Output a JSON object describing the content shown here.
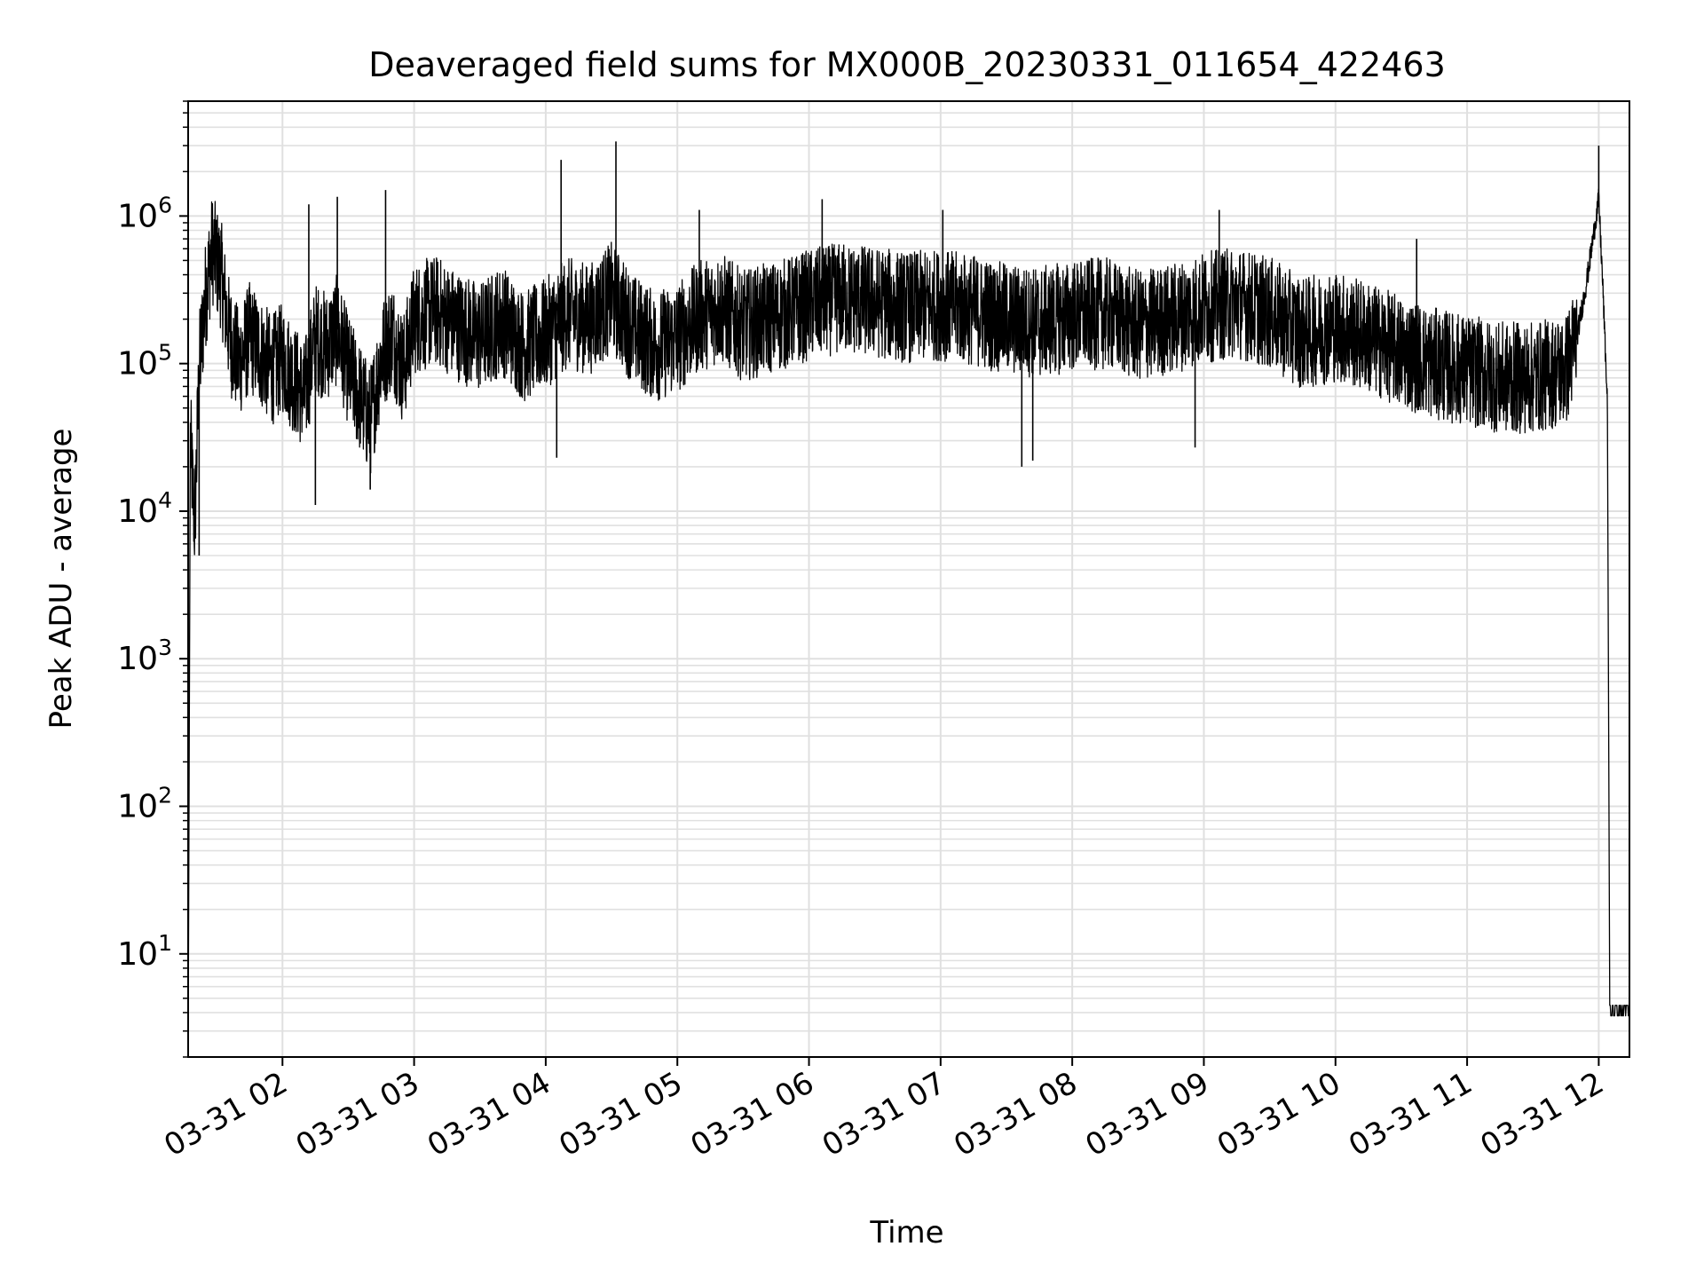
{
  "chart_data": {
    "type": "line",
    "title": "Deaveraged field sums for MX000B_20230331_011654_422463",
    "xlabel": "Time",
    "ylabel": "Peak ADU - average",
    "yscale": "log",
    "ylim": [
      2,
      6000000
    ],
    "xlim": [
      "03-31 01:17",
      "03-31 12:14"
    ],
    "grid": true,
    "legend": "none",
    "line_color": "#000000",
    "grid_color": "#e0e0e0",
    "x_ticks": [
      {
        "t": "03-31 02:00",
        "label": "03-31 02"
      },
      {
        "t": "03-31 03:00",
        "label": "03-31 03"
      },
      {
        "t": "03-31 04:00",
        "label": "03-31 04"
      },
      {
        "t": "03-31 05:00",
        "label": "03-31 05"
      },
      {
        "t": "03-31 06:00",
        "label": "03-31 06"
      },
      {
        "t": "03-31 07:00",
        "label": "03-31 07"
      },
      {
        "t": "03-31 08:00",
        "label": "03-31 08"
      },
      {
        "t": "03-31 09:00",
        "label": "03-31 09"
      },
      {
        "t": "03-31 10:00",
        "label": "03-31 10"
      },
      {
        "t": "03-31 11:00",
        "label": "03-31 11"
      },
      {
        "t": "03-31 12:00",
        "label": "03-31 12"
      }
    ],
    "y_ticks": [
      {
        "value": 10,
        "base": "10",
        "exp": "1"
      },
      {
        "value": 100,
        "base": "10",
        "exp": "2"
      },
      {
        "value": 1000,
        "base": "10",
        "exp": "3"
      },
      {
        "value": 10000,
        "base": "10",
        "exp": "4"
      },
      {
        "value": 100000,
        "base": "10",
        "exp": "5"
      },
      {
        "value": 1000000,
        "base": "10",
        "exp": "6"
      }
    ],
    "series": [
      {
        "x": [
          "03-31 01:17",
          "03-31 01:18",
          "03-31 01:20",
          "03-31 01:22",
          "03-31 01:25",
          "03-31 01:28",
          "03-31 01:32",
          "03-31 01:36",
          "03-31 01:40",
          "03-31 01:45",
          "03-31 01:50",
          "03-31 01:55",
          "03-31 02:00",
          "03-31 02:05",
          "03-31 02:10",
          "03-31 02:15",
          "03-31 02:20",
          "03-31 02:25",
          "03-31 02:30",
          "03-31 02:35",
          "03-31 02:40",
          "03-31 02:45",
          "03-31 02:50",
          "03-31 02:55",
          "03-31 03:00",
          "03-31 03:10",
          "03-31 03:20",
          "03-31 03:30",
          "03-31 03:40",
          "03-31 03:50",
          "03-31 04:00",
          "03-31 04:10",
          "03-31 04:20",
          "03-31 04:30",
          "03-31 04:40",
          "03-31 04:50",
          "03-31 05:00",
          "03-31 05:10",
          "03-31 05:20",
          "03-31 05:30",
          "03-31 05:40",
          "03-31 05:50",
          "03-31 06:00",
          "03-31 06:15",
          "03-31 06:30",
          "03-31 06:45",
          "03-31 07:00",
          "03-31 07:15",
          "03-31 07:30",
          "03-31 07:45",
          "03-31 08:00",
          "03-31 08:15",
          "03-31 08:30",
          "03-31 08:45",
          "03-31 09:00",
          "03-31 09:15",
          "03-31 09:30",
          "03-31 09:45",
          "03-31 10:00",
          "03-31 10:15",
          "03-31 10:30",
          "03-31 10:45",
          "03-31 11:00",
          "03-31 11:15",
          "03-31 11:30",
          "03-31 11:45",
          "03-31 11:50",
          "03-31 11:55",
          "03-31 12:00",
          "03-31 12:02",
          "03-31 12:04",
          "03-31 12:05",
          "03-31 12:06",
          "03-31 12:10",
          "03-31 12:14"
        ],
        "y": [
          2,
          30000,
          8000,
          90000,
          300000,
          600000,
          400000,
          150000,
          100000,
          150000,
          120000,
          90000,
          110000,
          80000,
          60000,
          150000,
          130000,
          170000,
          90000,
          60000,
          40000,
          110000,
          160000,
          90000,
          200000,
          230000,
          180000,
          150000,
          200000,
          130000,
          160000,
          220000,
          200000,
          280000,
          170000,
          130000,
          150000,
          210000,
          240000,
          180000,
          200000,
          220000,
          250000,
          280000,
          260000,
          240000,
          250000,
          230000,
          200000,
          190000,
          210000,
          220000,
          180000,
          200000,
          240000,
          260000,
          220000,
          160000,
          180000,
          150000,
          120000,
          100000,
          90000,
          80000,
          80000,
          90000,
          150000,
          400000,
          1300000,
          300000,
          50000,
          5000,
          4,
          4,
          4
        ],
        "spikes": [
          {
            "x": "03-31 01:32",
            "y": 800000
          },
          {
            "x": "03-31 02:12",
            "y": 1200000
          },
          {
            "x": "03-31 02:25",
            "y": 1350000
          },
          {
            "x": "03-31 02:47",
            "y": 1500000
          },
          {
            "x": "03-31 04:07",
            "y": 2400000
          },
          {
            "x": "03-31 04:32",
            "y": 3200000
          },
          {
            "x": "03-31 05:10",
            "y": 1100000
          },
          {
            "x": "03-31 06:06",
            "y": 1300000
          },
          {
            "x": "03-31 07:01",
            "y": 1100000
          },
          {
            "x": "03-31 09:07",
            "y": 1100000
          },
          {
            "x": "03-31 10:37",
            "y": 700000
          },
          {
            "x": "03-31 12:00",
            "y": 3000000
          }
        ],
        "dips": [
          {
            "x": "03-31 01:22",
            "y": 5000
          },
          {
            "x": "03-31 02:15",
            "y": 11000
          },
          {
            "x": "03-31 02:40",
            "y": 14000
          },
          {
            "x": "03-31 04:05",
            "y": 23000
          },
          {
            "x": "03-31 07:37",
            "y": 20000
          },
          {
            "x": "03-31 07:42",
            "y": 22000
          },
          {
            "x": "03-31 08:56",
            "y": 27000
          }
        ]
      }
    ]
  }
}
